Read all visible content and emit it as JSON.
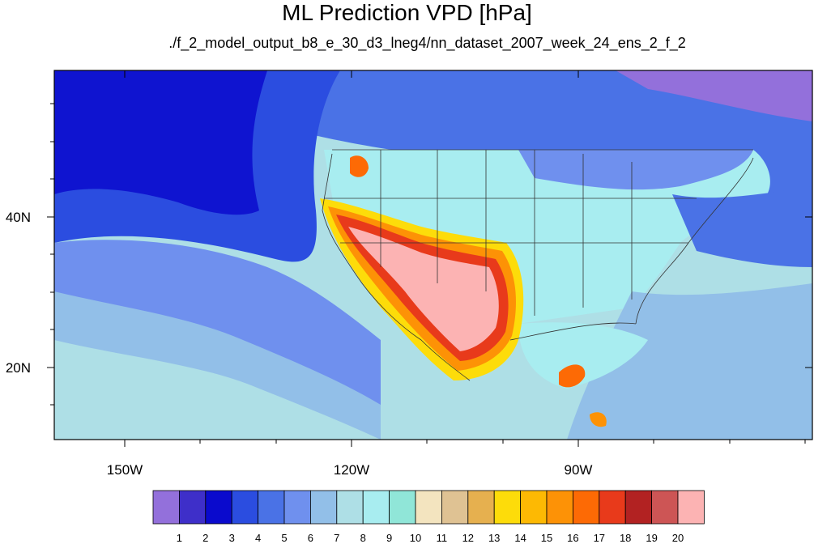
{
  "title": "ML Prediction VPD [hPa]",
  "subtitle": "./f_2_model_output_b8_e_30_d3_lneg4/nn_dataset_2007_week_24_ens_2_f_2",
  "axes": {
    "lat_labels": [
      "40N",
      "20N"
    ],
    "lon_labels": [
      "150W",
      "120W",
      "90W"
    ]
  },
  "colorbar": {
    "labels": [
      "1",
      "2",
      "3",
      "4",
      "5",
      "6",
      "7",
      "8",
      "9",
      "10",
      "11",
      "12",
      "13",
      "14",
      "15",
      "16",
      "17",
      "18",
      "19",
      "20"
    ],
    "colors": [
      "#9370db",
      "#3e2fc9",
      "#0a0acd",
      "#2b4de0",
      "#4a72e6",
      "#6f90ee",
      "#92bfe8",
      "#aedfe6",
      "#a8edf0",
      "#90e6d8",
      "#f3e4bf",
      "#dfc293",
      "#e6b04f",
      "#fddc0a",
      "#fdb903",
      "#fd9206",
      "#fd6a05",
      "#e83a1b",
      "#b22222",
      "#cd5555",
      "#fcb3b3"
    ]
  },
  "map_colors": {
    "ocean_north": "#2e34d8",
    "ocean_mid": "#4a72e6",
    "ocean_south": "#aedfe6",
    "land_base": "#a8edf0",
    "dry_core": "#fcb3b3",
    "outline": "#333333"
  }
}
